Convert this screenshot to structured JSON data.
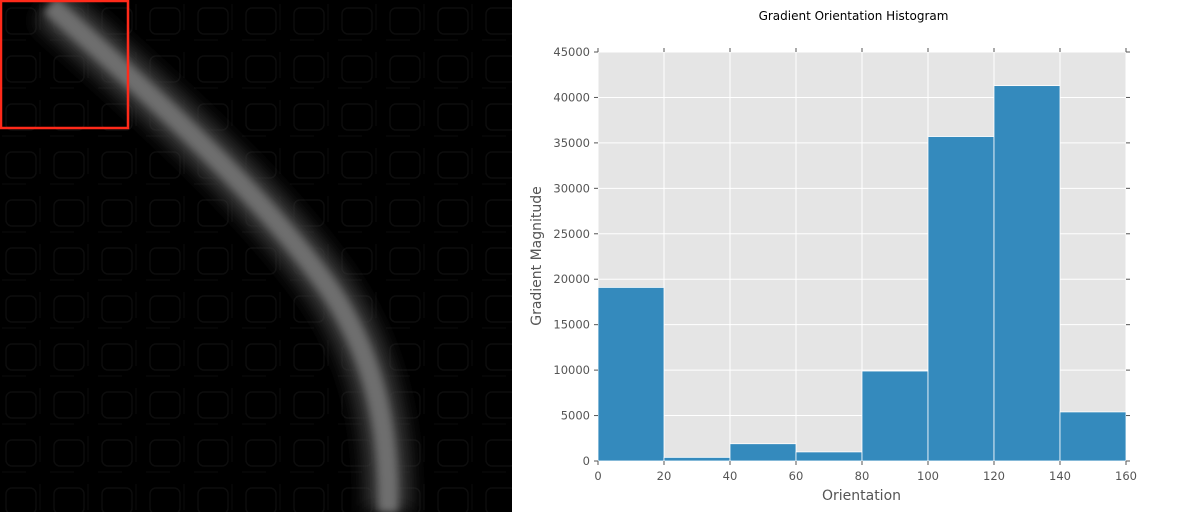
{
  "image_panel": {
    "background": "#000000",
    "highlight_box_color": "#ff2a1a",
    "streak_color": "#6e6e6e"
  },
  "chart_data": {
    "type": "bar",
    "title": "Gradient Orientation Histogram",
    "xlabel": "Orientation",
    "ylabel": "Gradient Magnitude",
    "bin_edges": [
      0,
      20,
      40,
      60,
      80,
      100,
      120,
      140,
      160
    ],
    "values": [
      19100,
      400,
      1900,
      1000,
      9900,
      35700,
      41300,
      5400
    ],
    "xlim": [
      0,
      160
    ],
    "ylim": [
      0,
      45000
    ],
    "x_ticks": [
      0,
      20,
      40,
      60,
      80,
      100,
      120,
      140,
      160
    ],
    "y_ticks": [
      0,
      5000,
      10000,
      15000,
      20000,
      25000,
      30000,
      35000,
      40000,
      45000
    ],
    "grid": true,
    "bar_color": "#348abd",
    "plot_background": "#e5e5e5",
    "grid_color": "#ffffff"
  }
}
